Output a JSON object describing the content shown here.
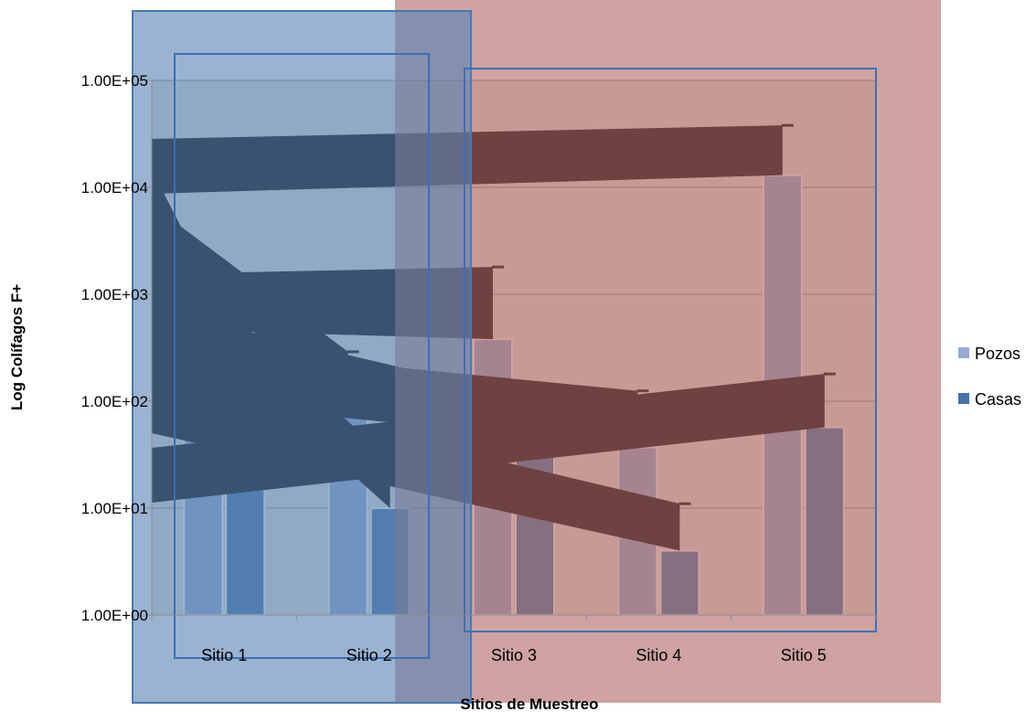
{
  "chart_data": {
    "type": "bar",
    "title": "",
    "xlabel": "Sitios de Muestreo",
    "ylabel": "Log Colífagos F+",
    "y_scale": "log",
    "ylim": [
      1,
      100000
    ],
    "y_ticks": [
      1,
      10,
      100,
      1000,
      10000,
      100000
    ],
    "y_tick_labels": [
      "1.00E+00",
      "1.00E+01",
      "1.00E+02",
      "1.00E+03",
      "1.00E+04",
      "1.00E+05"
    ],
    "categories": [
      "Sitio 1",
      "Sitio 2",
      "Sitio 3",
      "Sitio 4",
      "Sitio 5"
    ],
    "series": [
      {
        "name": "Pozos",
        "color": "#95abd3",
        "values": [
          50,
          105,
          380,
          37,
          13000
        ],
        "error_top": [
          175,
          290,
          1800,
          125,
          38000
        ]
      },
      {
        "name": "Casas",
        "color": "#4573a8",
        "values": [
          170,
          10,
          44,
          4,
          57
        ],
        "error_top": [
          290,
          28,
          105,
          11,
          180
        ]
      }
    ],
    "grid": true,
    "legend_position": "right",
    "plot_background": "#ebe8dc",
    "overlay_colors": {
      "blue_box": "#5b85b5",
      "red_box": "#b06b69",
      "error_band": "#000000"
    }
  }
}
